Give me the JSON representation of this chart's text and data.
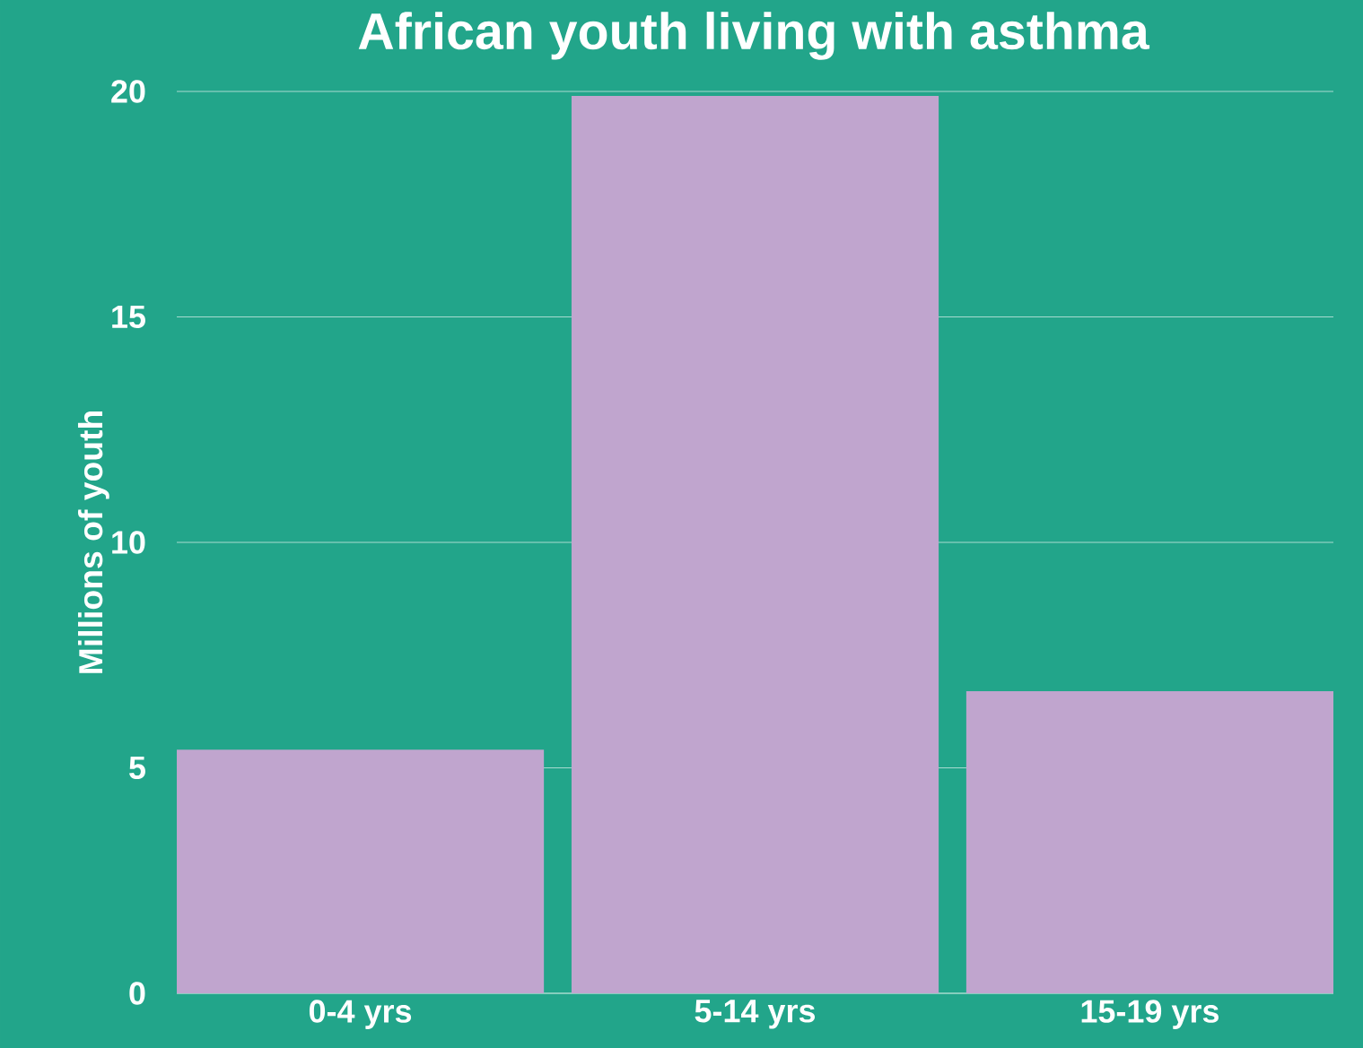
{
  "chart_data": {
    "type": "bar",
    "title": "African youth living with asthma",
    "ylabel": "Millions of youth",
    "categories": [
      "0-4 yrs",
      "5-14 yrs",
      "15-19 yrs"
    ],
    "values": [
      5.4,
      19.9,
      6.7
    ],
    "color": "#c0a5ce",
    "ylim": [
      0,
      20
    ],
    "yticks": [
      0,
      5,
      10,
      15,
      20
    ],
    "grid": "y"
  }
}
